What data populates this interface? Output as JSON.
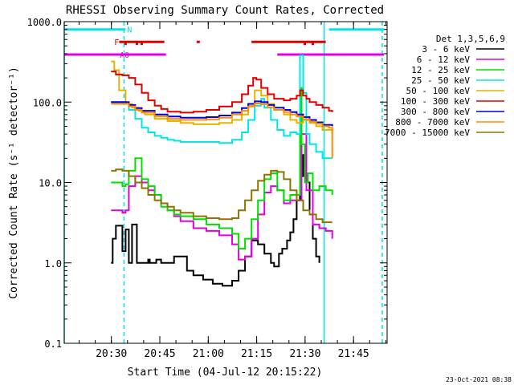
{
  "chart_data": {
    "type": "line",
    "title": "RHESSI Observing Summary Count Rates, Corrected",
    "xlabel": "Start Time (04-Jul-12 20:15:22)",
    "ylabel": "Corrected Count Rate (s⁻¹ detector⁻¹)",
    "yscale": "log",
    "ylim": [
      0.1,
      1000
    ],
    "xlim_min": [
      0,
      100
    ],
    "x_origin_label": "20:15:22",
    "x_ticks": [
      {
        "label": "20:30",
        "min": 14.6
      },
      {
        "label": "20:45",
        "min": 29.6
      },
      {
        "label": "21:00",
        "min": 44.6
      },
      {
        "label": "21:15",
        "min": 59.6
      },
      {
        "label": "21:30",
        "min": 74.6
      },
      {
        "label": "21:45",
        "min": 89.6
      }
    ],
    "y_ticks": [
      {
        "label": "1000.0",
        "v": 1000
      },
      {
        "label": "100.0",
        "v": 100
      },
      {
        "label": "10.0",
        "v": 10
      },
      {
        "label": "1.0",
        "v": 1
      },
      {
        "label": "0.1",
        "v": 0.1
      }
    ],
    "legend_title": "Det 1,3,5,6,9",
    "legend_position": "right",
    "footer_date": "23-Oct-2021 08:38",
    "flags": [
      {
        "label": "N",
        "color": "#00e5e5",
        "segments": [
          [
            0,
            19
          ],
          [
            82,
            99
          ]
        ],
        "y": 800
      },
      {
        "label": "F",
        "color": "#e00000",
        "segments": [
          [
            17,
            31
          ],
          [
            41,
            42
          ],
          [
            58,
            81
          ]
        ],
        "y": 560
      },
      {
        "label": "A0",
        "color": "#e000e0",
        "segments": [
          [
            0,
            31.5
          ],
          [
            66,
            99
          ]
        ],
        "y": 390
      }
    ],
    "flag_markers": [
      {
        "color": "#e00000",
        "x": [
          19,
          22.5,
          24
        ]
      },
      {
        "color": "#e00000",
        "x": [
          74.5,
          77
        ]
      }
    ],
    "vlines": [
      {
        "x": 0,
        "color": "#00e5e5",
        "dash": false
      },
      {
        "x": 18.5,
        "color": "#00e5e5",
        "dash": true
      },
      {
        "x": 80.5,
        "color": "#00e5e5",
        "dash": false
      },
      {
        "x": 98.5,
        "color": "#00e5e5",
        "dash": true
      }
    ],
    "series": [
      {
        "name": "3 - 6 keV",
        "color": "#000000",
        "x": [
          14.5,
          15,
          16,
          18,
          19,
          20,
          21,
          22.5,
          23,
          24,
          25,
          26,
          26.5,
          27.5,
          28.5,
          30,
          31,
          32,
          34,
          36,
          38,
          40,
          43,
          46,
          49,
          52,
          54,
          56,
          58,
          60,
          62,
          64,
          65,
          66.5,
          67.5,
          69,
          70,
          71,
          72,
          73,
          74,
          75,
          76,
          77,
          78,
          79
        ],
        "y": [
          1.0,
          2.0,
          2.9,
          1.4,
          2.6,
          1.0,
          3.0,
          1.0,
          1.0,
          1.0,
          1.0,
          1.1,
          1.0,
          1.0,
          1.1,
          1.0,
          1.0,
          1.0,
          1.2,
          1.2,
          0.8,
          0.7,
          0.62,
          0.55,
          0.52,
          0.6,
          0.8,
          1.2,
          1.9,
          1.7,
          1.3,
          1.0,
          0.9,
          1.3,
          1.5,
          1.9,
          2.4,
          3.5,
          6.0,
          12.0,
          22.0,
          10.0,
          4.0,
          2.0,
          1.2,
          1.0
        ]
      },
      {
        "name": "6 - 12 keV",
        "color": "#e000e0",
        "x": [
          14.5,
          18,
          19,
          20,
          22,
          24,
          26,
          28,
          30,
          32,
          34,
          36,
          40,
          44,
          48,
          52,
          54,
          56,
          58,
          60,
          62,
          64,
          66,
          68,
          70,
          72,
          73.5,
          75,
          77,
          79,
          81,
          83
        ],
        "y": [
          4.5,
          4.2,
          4.5,
          9.0,
          12.0,
          10.0,
          8.0,
          7.0,
          5.5,
          4.5,
          3.8,
          3.3,
          2.7,
          2.5,
          2.2,
          1.7,
          1.1,
          1.2,
          2.0,
          4.0,
          7.5,
          9.0,
          8.0,
          5.5,
          6.0,
          6.0,
          40.0,
          8.0,
          3.0,
          2.7,
          2.5,
          2.0
        ]
      },
      {
        "name": "12 - 25 keV",
        "color": "#00e000",
        "x": [
          14.5,
          18,
          19,
          20,
          22,
          24,
          26,
          28,
          30,
          32,
          34,
          36,
          40,
          44,
          48,
          52,
          54,
          56,
          58,
          60,
          62,
          64,
          66,
          68,
          70,
          72,
          73,
          73.5,
          74.5,
          75.5,
          77,
          79,
          81,
          83
        ],
        "y": [
          10.0,
          9.0,
          9.5,
          14.0,
          20.0,
          11.0,
          9.0,
          7.0,
          5.0,
          4.5,
          4.0,
          3.8,
          3.5,
          3.0,
          2.7,
          2.3,
          1.5,
          2.0,
          3.5,
          6.0,
          11.0,
          13.0,
          8.0,
          6.0,
          7.0,
          7.0,
          150.0,
          30.0,
          10.0,
          13.0,
          8.0,
          9.0,
          8.0,
          7.0
        ]
      },
      {
        "name": "25 - 50 keV",
        "color": "#00e5e5",
        "x": [
          14.5,
          16,
          18,
          20,
          22,
          24,
          26,
          28,
          30,
          32,
          34,
          36,
          40,
          44,
          48,
          52,
          55,
          57,
          59,
          61,
          62,
          64,
          66,
          68,
          70,
          72,
          73,
          74,
          75,
          76,
          78,
          80,
          83
        ],
        "y": [
          100.0,
          100.0,
          95.0,
          80.0,
          62.0,
          48.0,
          42.0,
          38.0,
          36.0,
          34.0,
          33.0,
          32.0,
          32.0,
          32.0,
          31.0,
          34.0,
          42.0,
          60.0,
          90.0,
          110.0,
          85.0,
          60.0,
          45.0,
          38.0,
          42.0,
          40.0,
          380.0,
          130.0,
          40.0,
          30.0,
          24.0,
          20.0,
          20.0
        ]
      },
      {
        "name": "50 - 100 keV",
        "color": "#e5b400",
        "x": [
          14.5,
          15.5,
          17,
          19,
          21,
          23,
          25,
          28,
          32,
          36,
          40,
          44,
          48,
          52,
          55,
          57,
          59,
          61,
          63,
          65,
          68,
          70,
          72,
          74,
          76,
          78,
          80,
          83
        ],
        "y": [
          320.0,
          250.0,
          140.0,
          95.0,
          85.0,
          78.0,
          70.0,
          62.0,
          58.0,
          55.0,
          53.0,
          53.0,
          55.0,
          60.0,
          70.0,
          90.0,
          140.0,
          120.0,
          95.0,
          80.0,
          70.0,
          60.0,
          55.0,
          60.0,
          55.0,
          50.0,
          45.0,
          40.0
        ]
      },
      {
        "name": "100 - 300 keV",
        "color": "#e00000",
        "x": [
          14.5,
          16,
          18,
          20,
          22,
          24,
          26,
          28,
          30,
          32,
          36,
          40,
          44,
          48,
          52,
          55,
          57,
          58.5,
          59.5,
          61,
          63,
          65,
          68,
          70,
          72,
          73,
          74,
          75,
          76,
          78,
          80,
          82,
          83
        ],
        "y": [
          240.0,
          220.0,
          215.0,
          200.0,
          165.0,
          130.0,
          105.0,
          90.0,
          82.0,
          76.0,
          74.0,
          76.0,
          80.0,
          88.0,
          100.0,
          125.0,
          160.0,
          200.0,
          190.0,
          150.0,
          125.0,
          110.0,
          105.0,
          110.0,
          120.0,
          140.0,
          120.0,
          110.0,
          100.0,
          92.0,
          85.0,
          78.0,
          75.0
        ]
      },
      {
        "name": "300 - 800 keV",
        "color": "#0000e0",
        "x": [
          14.5,
          18,
          20,
          22,
          24,
          28,
          32,
          36,
          40,
          44,
          48,
          52,
          55,
          57,
          59,
          61,
          63,
          65,
          68,
          70,
          72,
          74,
          76,
          78,
          80,
          83
        ],
        "y": [
          100.0,
          100.0,
          92.0,
          84.0,
          78.0,
          70.0,
          66.0,
          64.0,
          64.0,
          65.0,
          68.0,
          74.0,
          84.0,
          95.0,
          102.0,
          100.0,
          92.0,
          85.0,
          80.0,
          75.0,
          70.0,
          65.0,
          60.0,
          56.0,
          52.0,
          50.0
        ]
      },
      {
        "name": "800 - 7000 keV",
        "color": "#ff8c00",
        "x": [
          14.5,
          18,
          20,
          22,
          24,
          28,
          32,
          36,
          40,
          44,
          48,
          52,
          55,
          57,
          59,
          61,
          63,
          65,
          68,
          70,
          72,
          74,
          76,
          78,
          80,
          82,
          83
        ],
        "y": [
          95.0,
          95.0,
          88.0,
          80.0,
          74.0,
          66.0,
          62.0,
          60.0,
          60.0,
          61.0,
          64.0,
          70.0,
          78.0,
          88.0,
          96.0,
          94.0,
          86.0,
          80.0,
          75.0,
          70.0,
          66.0,
          61.0,
          57.0,
          54.0,
          50.0,
          48.0,
          20.0
        ]
      },
      {
        "name": "7000 - 15000 keV",
        "color": "#8b7500",
        "x": [
          14.5,
          16,
          18,
          20,
          22,
          24,
          26,
          28,
          30,
          32,
          34,
          36,
          40,
          44,
          48,
          52,
          54,
          56,
          58,
          60,
          62,
          64,
          66,
          68,
          70,
          72,
          74,
          76,
          78,
          80,
          83
        ],
        "y": [
          14.0,
          14.5,
          14.0,
          12.0,
          10.0,
          8.5,
          7.0,
          6.0,
          5.5,
          5.0,
          4.5,
          4.2,
          3.8,
          3.6,
          3.5,
          3.6,
          4.5,
          6.0,
          8.0,
          10.5,
          12.5,
          14.0,
          13.5,
          11.0,
          8.0,
          6.0,
          4.5,
          4.0,
          3.5,
          3.2,
          3.2
        ]
      }
    ]
  }
}
